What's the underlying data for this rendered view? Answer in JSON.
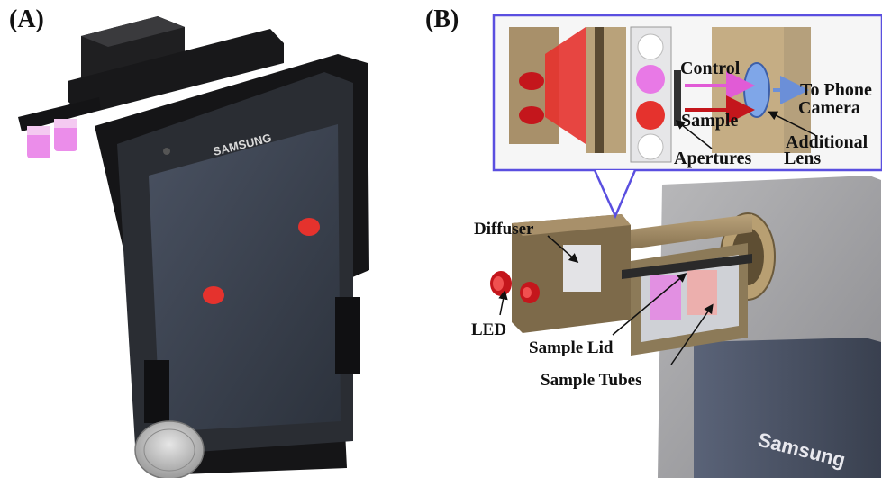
{
  "panels": {
    "a_label": "(A)",
    "b_label": "(B)"
  },
  "device": {
    "phone_brand_front": "SAMSUNG",
    "phone_brand_render": "Samsung"
  },
  "callouts": {
    "control": "Control",
    "sample": "Sample",
    "to_phone": "To Phone",
    "camera": "Camera",
    "additional": "Additional",
    "lens": "Lens",
    "apertures": "Apertures",
    "diffuser": "Diffuser",
    "led": "LED",
    "sample_lid": "Sample Lid",
    "sample_tubes": "Sample Tubes"
  },
  "colors": {
    "callout_border": "#5a4fe0",
    "holder_black": "#1c1c1e",
    "phone_screen": "#3a4150",
    "red_spot": "#e5322d",
    "pink_liquid": "#e879e6",
    "render_tan": "#a8906a",
    "arrow_pink": "#e15bd6",
    "arrow_red": "#c4161c",
    "arrow_blue": "#6b8fd8"
  }
}
